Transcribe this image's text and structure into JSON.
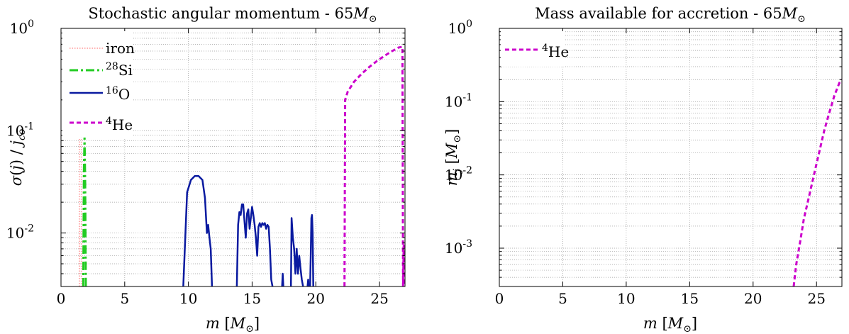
{
  "chart_data": [
    {
      "type": "line",
      "title": "Stochastic angular momentum - 65M⊙",
      "xlabel": "m [M⊙]",
      "ylabel": "σ(j) / j_co",
      "yscale": "log",
      "xlim": [
        0,
        27
      ],
      "ylim": [
        0.003,
        1
      ],
      "xticks": [
        0,
        5,
        10,
        15,
        20,
        25
      ],
      "yticks": [
        0.01,
        0.1,
        1
      ],
      "ytick_labels": [
        "10^-2",
        "10^-1",
        "10^0"
      ],
      "grid": true,
      "legend": "top-left",
      "series": [
        {
          "name": "iron",
          "color": "#ff9999",
          "style": "dotted",
          "x": [
            1.45,
            1.45,
            1.6,
            1.6
          ],
          "y": [
            0.003,
            0.14,
            0.14,
            0.003
          ]
        },
        {
          "name": "28Si",
          "color": "#22cc22",
          "style": "dashdot",
          "x": [
            1.75,
            1.8,
            1.85,
            1.9,
            1.95
          ],
          "y": [
            0.003,
            0.04,
            0.09,
            0.03,
            0.003
          ]
        },
        {
          "name": "16O",
          "color": "#0a1aa0",
          "style": "solid",
          "segments": [
            {
              "x": [
                9.6,
                9.9,
                10.2,
                10.5,
                10.8,
                11.1,
                11.3,
                11.45,
                11.55,
                11.65,
                11.75,
                11.85
              ],
              "y": [
                0.003,
                0.025,
                0.033,
                0.036,
                0.036,
                0.033,
                0.022,
                0.01,
                0.012,
                0.009,
                0.007,
                0.003
              ]
            },
            {
              "x": [
                13.8,
                13.9,
                14.0,
                14.1,
                14.2,
                14.3,
                14.4,
                14.5,
                14.6,
                14.7,
                14.8,
                14.9,
                15.0,
                15.1,
                15.2,
                15.3,
                15.4,
                15.5,
                15.6,
                15.7,
                15.8,
                15.9,
                16.0,
                16.1,
                16.2,
                16.3,
                16.4,
                16.5,
                16.6
              ],
              "y": [
                0.003,
                0.012,
                0.016,
                0.015,
                0.019,
                0.019,
                0.013,
                0.009,
                0.0155,
                0.017,
                0.011,
                0.014,
                0.018,
                0.015,
                0.012,
                0.009,
                0.006,
                0.0115,
                0.0125,
                0.0115,
                0.0125,
                0.012,
                0.0125,
                0.011,
                0.012,
                0.0115,
                0.007,
                0.0035,
                0.003
              ]
            },
            {
              "x": [
                17.35,
                17.4,
                17.45
              ],
              "y": [
                0.003,
                0.004,
                0.003
              ]
            },
            {
              "x": [
                18.05,
                18.1,
                18.2,
                18.3,
                18.4,
                18.5,
                18.6,
                18.7,
                18.8,
                18.9,
                19.0
              ],
              "y": [
                0.003,
                0.014,
                0.009,
                0.007,
                0.004,
                0.007,
                0.004,
                0.006,
                0.0045,
                0.0035,
                0.003
              ]
            },
            {
              "x": [
                19.35,
                19.4,
                19.45
              ],
              "y": [
                0.003,
                0.0035,
                0.003
              ]
            },
            {
              "x": [
                19.55,
                19.6,
                19.65,
                19.7,
                19.75,
                19.8
              ],
              "y": [
                0.003,
                0.006,
                0.014,
                0.015,
                0.01,
                0.003
              ]
            }
          ]
        },
        {
          "name": "4He",
          "color": "#cc00cc",
          "style": "dashed",
          "x": [
            22.25,
            22.3,
            22.5,
            23.0,
            23.6,
            24.2,
            24.8,
            25.4,
            26.0,
            26.5,
            26.8,
            26.85,
            26.9,
            26.95
          ],
          "y": [
            0.003,
            0.2,
            0.24,
            0.3,
            0.36,
            0.42,
            0.48,
            0.54,
            0.6,
            0.65,
            0.66,
            0.003,
            0.0075,
            0.003
          ]
        }
      ]
    },
    {
      "type": "line",
      "title": "Mass available for accretion - 65M⊙",
      "xlabel": "m [M⊙]",
      "ylabel": "m_j [M⊙]",
      "yscale": "log",
      "xlim": [
        0,
        27
      ],
      "ylim": [
        0.0003,
        1
      ],
      "xticks": [
        0,
        5,
        10,
        15,
        20,
        25
      ],
      "yticks": [
        0.001,
        0.01,
        0.1,
        1
      ],
      "ytick_labels": [
        "10^-3",
        "10^-2",
        "10^-1",
        "10^0"
      ],
      "grid": true,
      "legend": "top-left",
      "series": [
        {
          "name": "4He",
          "color": "#cc00cc",
          "style": "dashed",
          "x": [
            23.2,
            23.4,
            23.7,
            24.0,
            24.4,
            24.8,
            25.2,
            25.6,
            26.0,
            26.4,
            26.8,
            27.0
          ],
          "y": [
            0.0003,
            0.0006,
            0.0012,
            0.0025,
            0.005,
            0.01,
            0.02,
            0.04,
            0.07,
            0.12,
            0.18,
            0.2
          ]
        }
      ]
    }
  ],
  "panel_titles": [
    {
      "text": "Stochastic angular momentum - 65",
      "sym": "M",
      "sub": "⊙"
    },
    {
      "text": "Mass available for accretion - 65",
      "sym": "M",
      "sub": "⊙"
    }
  ],
  "xlabel_parts": {
    "pre": "m ",
    "open": "[",
    "sym": "M",
    "sub": "⊙",
    "close": "]"
  },
  "ylabel_left_parts": {
    "pre": "σ(",
    "j": "j",
    "mid": ") / ",
    "jj": "j",
    "sub": "co"
  },
  "ylabel_right_parts": {
    "m": "m",
    "sub": "j",
    "open": " [",
    "sym": "M",
    "sub2": "⊙",
    "close": "]"
  },
  "legend_entries": [
    {
      "sup": "",
      "label": "iron"
    },
    {
      "sup": "28",
      "label": "Si"
    },
    {
      "sup": "16",
      "label": "O"
    },
    {
      "sup": "4",
      "label": "He"
    }
  ],
  "legend_entries_right": [
    {
      "sup": "4",
      "label": "He"
    }
  ]
}
